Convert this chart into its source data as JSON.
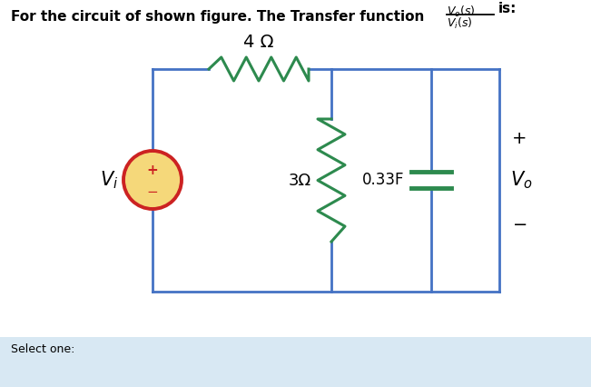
{
  "bg_color": "#d8e8f3",
  "panel_color": "#ffffff",
  "title_text": "For the circuit of shown figure. The Transfer function",
  "is_text": "is:",
  "resistor_top_label": "4 Ω",
  "resistor_mid_label": "3Ω",
  "capacitor_label": "0.33F",
  "vi_label": "V_i",
  "vo_label": "V_o",
  "select_text": "Select one:",
  "circuit_color": "#4472c4",
  "resistor_color": "#2d8a4e",
  "cap_color": "#2d8a4e",
  "source_fill": "#f5d87a",
  "source_border": "#cc2222",
  "plus_color": "#cc2222",
  "minus_color": "#cc2222"
}
